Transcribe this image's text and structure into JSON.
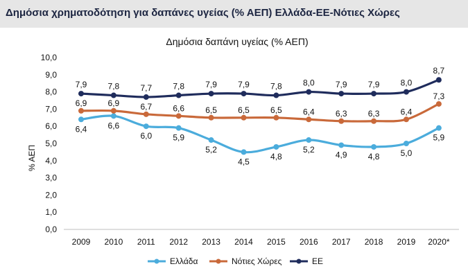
{
  "header": {
    "title": "Δημόσια χρηματοδότηση για δαπάνες υγείας (% ΑΕΠ) Ελλάδα-ΕΕ-Νότιες Χώρες"
  },
  "chart_data": {
    "type": "line",
    "title": "Δημόσια δαπάνη υγείας (% ΑΕΠ)",
    "xlabel": "",
    "ylabel": "% ΑΕΠ",
    "ylim": [
      0,
      10
    ],
    "y_ticks": [
      "0,0",
      "1,0",
      "2,0",
      "3,0",
      "4,0",
      "5,0",
      "6,0",
      "7,0",
      "8,0",
      "9,0",
      "10,0"
    ],
    "categories": [
      "2009",
      "2010",
      "2011",
      "2012",
      "2013",
      "2014",
      "2015",
      "2016",
      "2017",
      "2018",
      "2019",
      "2020*"
    ],
    "grid": false,
    "legend": "bottom",
    "series": [
      {
        "name": "Ελλάδα",
        "color": "#4bacdc",
        "values": [
          6.4,
          6.6,
          6.0,
          5.9,
          5.2,
          4.5,
          4.8,
          5.2,
          4.9,
          4.8,
          5.0,
          5.9
        ],
        "labels": [
          "6,4",
          "6,6",
          "6,0",
          "5,9",
          "5,2",
          "4,5",
          "4,8",
          "5,2",
          "4,9",
          "4,8",
          "5,0",
          "5,9"
        ]
      },
      {
        "name": "Νότιες Χώρες",
        "color": "#c9693a",
        "values": [
          6.9,
          6.9,
          6.7,
          6.6,
          6.5,
          6.5,
          6.5,
          6.4,
          6.3,
          6.3,
          6.4,
          7.3
        ],
        "labels": [
          "6,9",
          "6,9",
          "6,7",
          "6,6",
          "6,5",
          "6,5",
          "6,5",
          "6,4",
          "6,3",
          "6,3",
          "6,4",
          "7,3"
        ]
      },
      {
        "name": "ΕΕ",
        "color": "#1f2c5c",
        "values": [
          7.9,
          7.8,
          7.7,
          7.8,
          7.9,
          7.9,
          7.8,
          8.0,
          7.9,
          7.9,
          8.0,
          8.7
        ],
        "labels": [
          "7,9",
          "7,8",
          "7,7",
          "7,8",
          "7,9",
          "7,9",
          "7,8",
          "8,0",
          "7,9",
          "7,9",
          "8,0",
          "8,7"
        ]
      }
    ]
  }
}
